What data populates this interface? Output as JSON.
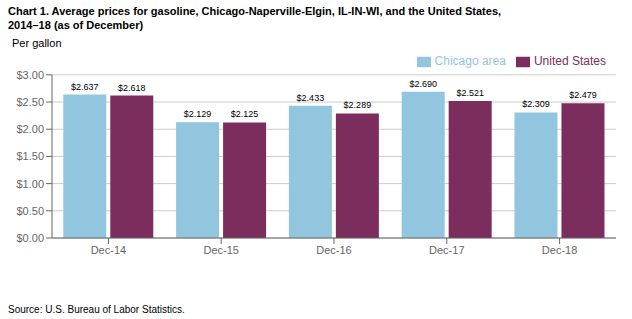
{
  "chart_data": {
    "type": "bar",
    "title": "Chart 1. Average prices for gasoline, Chicago-Naperville-Elgin, IL-IN-WI, and the United States,",
    "subtitle": "2014–18  (as of December)",
    "ylabel": "Per gallon",
    "annotations": [
      "Source: U.S. Bureau of Labor Statistics."
    ],
    "categories": [
      "Dec-14",
      "Dec-15",
      "Dec-16",
      "Dec-17",
      "Dec-18"
    ],
    "series": [
      {
        "name": "Chicago area",
        "color": "#92C5DE",
        "values": [
          2.637,
          2.129,
          2.433,
          2.69,
          2.309
        ],
        "value_labels": [
          "$2.637",
          "$2.129",
          "$2.433",
          "$2.690",
          "$2.309"
        ]
      },
      {
        "name": "United States",
        "color": "#7B2D5E",
        "values": [
          2.618,
          2.125,
          2.289,
          2.521,
          2.479
        ],
        "value_labels": [
          "$2.618",
          "$2.125",
          "$2.289",
          "$2.521",
          "$2.479"
        ]
      }
    ],
    "ylim": [
      0.0,
      3.0
    ],
    "yticks": [
      {
        "value": 0.0,
        "label": "$0.00"
      },
      {
        "value": 0.5,
        "label": "$0.50"
      },
      {
        "value": 1.0,
        "label": "$1.00"
      },
      {
        "value": 1.5,
        "label": "$1.50"
      },
      {
        "value": 2.0,
        "label": "$2.00"
      },
      {
        "value": 2.5,
        "label": "$2.50"
      },
      {
        "value": 3.0,
        "label": "$3.00"
      }
    ],
    "grid": true,
    "legend": "upper right",
    "data_labels": true
  }
}
